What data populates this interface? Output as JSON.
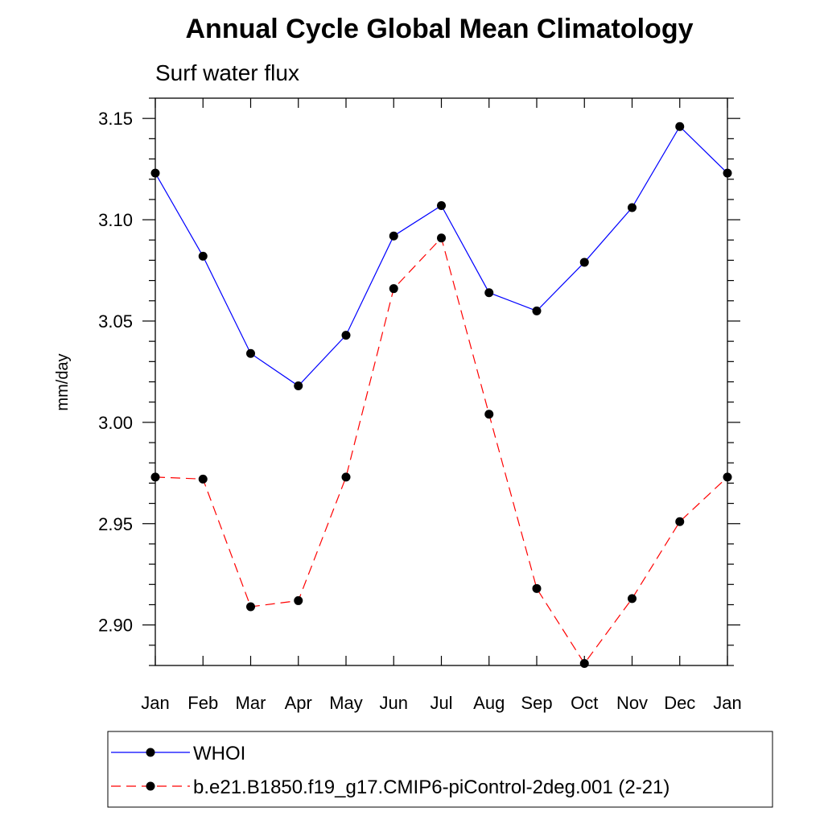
{
  "chart_data": {
    "type": "line",
    "title": "Annual Cycle Global Mean Climatology",
    "subtitle": "Surf water flux",
    "ylabel": "mm/day",
    "xlabel": "",
    "categories": [
      "Jan",
      "Feb",
      "Mar",
      "Apr",
      "May",
      "Jun",
      "Jul",
      "Aug",
      "Sep",
      "Oct",
      "Nov",
      "Dec",
      "Jan"
    ],
    "ylim": [
      2.88,
      3.16
    ],
    "yticks": [
      "2.90",
      "2.95",
      "3.00",
      "3.05",
      "3.10",
      "3.15"
    ],
    "grid": false,
    "legend_position": "bottom",
    "series": [
      {
        "name": "WHOI",
        "color": "#0000ff",
        "dash": "solid",
        "values": [
          3.123,
          3.082,
          3.034,
          3.018,
          3.043,
          3.092,
          3.107,
          3.064,
          3.055,
          3.079,
          3.106,
          3.146,
          3.123
        ]
      },
      {
        "name": "b.e21.B1850.f19_g17.CMIP6-piControl-2deg.001 (2-21)",
        "color": "#ff0000",
        "dash": "dashed",
        "values": [
          2.973,
          2.972,
          2.909,
          2.912,
          2.973,
          3.066,
          3.091,
          3.004,
          2.918,
          2.881,
          2.913,
          2.951,
          2.973
        ]
      }
    ]
  }
}
